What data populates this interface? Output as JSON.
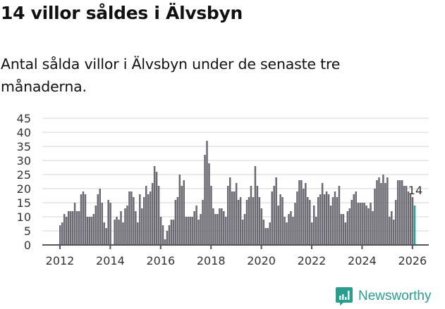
{
  "header": {
    "title": "14 villor såldes i Älvsbyn",
    "subtitle": "Antal sålda villor i Älvsbyn under de senaste tre månaderna."
  },
  "footer": {
    "brand": "Newsworthy",
    "brand_icon": "bar-chart-speech-bubble-icon"
  },
  "colors": {
    "bar": "#6b6a72",
    "highlight": "#1fa39a",
    "grid": "#e3e3e3",
    "axis": "#555555",
    "brand": "#2a9d8f"
  },
  "chart_data": {
    "type": "bar",
    "title": "14 villor såldes i Älvsbyn",
    "subtitle": "Antal sålda villor i Älvsbyn under de senaste tre månaderna.",
    "xlabel": "",
    "ylabel": "",
    "ylim": [
      0,
      45
    ],
    "yticks": [
      0,
      5,
      10,
      15,
      20,
      25,
      30,
      35,
      40,
      45
    ],
    "xticks": [
      "2012",
      "2014",
      "2016",
      "2018",
      "2020",
      "2022",
      "2024",
      "2026"
    ],
    "grid": true,
    "legend": null,
    "start": "2012-01",
    "frequency": "monthly",
    "annotation": {
      "label": "14",
      "index": "last"
    },
    "values": [
      7,
      8,
      11,
      10,
      12,
      12,
      12,
      15,
      12,
      12,
      18,
      19,
      18,
      10,
      10,
      10,
      11,
      14,
      18,
      20,
      15,
      8,
      6,
      16,
      15,
      0,
      9,
      10,
      9,
      12,
      8,
      13,
      14,
      19,
      19,
      17,
      12,
      8,
      18,
      13,
      17,
      21,
      18,
      19,
      22,
      28,
      26,
      21,
      10,
      7,
      2,
      5,
      7,
      9,
      9,
      16,
      17,
      25,
      21,
      23,
      10,
      10,
      10,
      10,
      12,
      14,
      9,
      11,
      16,
      32,
      37,
      29,
      21,
      13,
      11,
      11,
      13,
      13,
      12,
      10,
      21,
      24,
      19,
      19,
      22,
      16,
      17,
      9,
      11,
      16,
      17,
      21,
      17,
      28,
      21,
      17,
      13,
      9,
      6,
      6,
      8,
      19,
      21,
      24,
      14,
      18,
      17,
      10,
      8,
      11,
      12,
      10,
      15,
      19,
      23,
      23,
      20,
      22,
      17,
      16,
      8,
      14,
      10,
      17,
      18,
      22,
      18,
      19,
      18,
      14,
      17,
      19,
      17,
      21,
      11,
      11,
      8,
      12,
      13,
      16,
      18,
      19,
      15,
      15,
      15,
      15,
      14,
      13,
      15,
      12,
      20,
      23,
      24,
      22,
      25,
      22,
      24,
      10,
      12,
      9,
      16,
      23,
      23,
      23,
      21,
      21,
      19,
      18,
      17,
      14
    ]
  }
}
